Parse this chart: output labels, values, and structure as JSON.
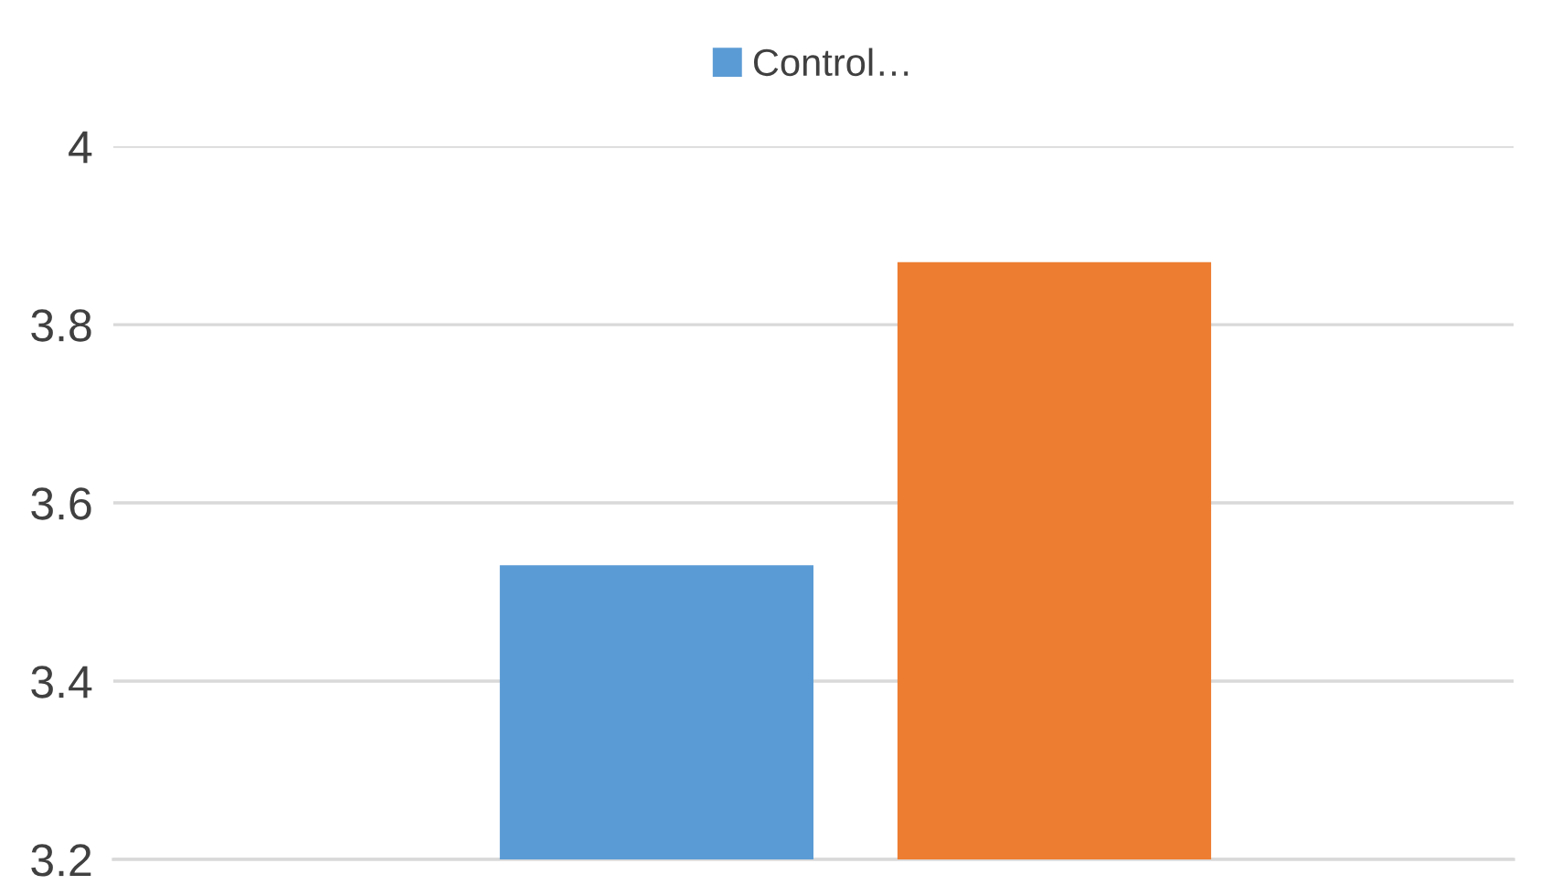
{
  "chart_data": {
    "type": "bar",
    "categories": [
      null
    ],
    "series": [
      {
        "name": "Control…",
        "color": "#5b9bd5",
        "values": [
          3.53
        ]
      },
      {
        "color": "#ed7d31",
        "values": [
          3.87
        ]
      }
    ],
    "ylim": [
      3.2,
      4
    ],
    "yticks": [
      3.2,
      3.4,
      3.6,
      3.8,
      4
    ],
    "grid": "y",
    "legend": "top"
  }
}
